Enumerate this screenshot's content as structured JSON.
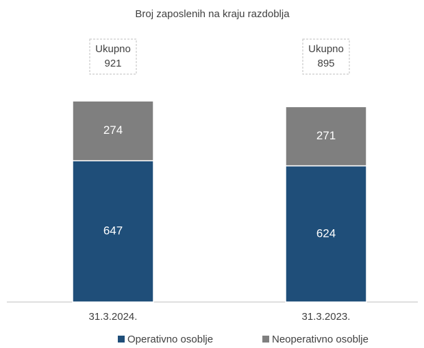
{
  "chart_data": {
    "type": "stacked_bar",
    "title": "Broj zaposlenih  na kraju razdoblja",
    "categories": [
      "31.3.2024.",
      "31.3.2023."
    ],
    "series": [
      {
        "name": "Operativno osoblje",
        "color": "#1f4e79",
        "values": [
          647,
          624
        ]
      },
      {
        "name": "Neoperativno osoblje",
        "color": "#7f7f7f",
        "values": [
          274,
          271
        ]
      }
    ],
    "totals_label": "Ukupno",
    "totals": [
      921,
      895
    ],
    "legend": "bottom"
  }
}
